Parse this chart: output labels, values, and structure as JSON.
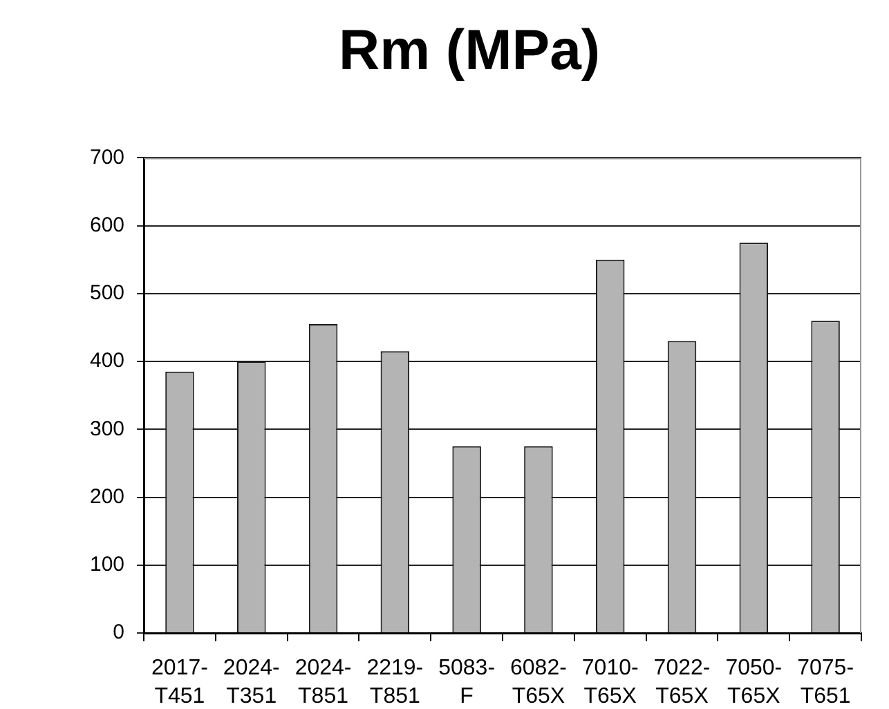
{
  "chart_data": {
    "type": "bar",
    "title": "Rm (MPa)",
    "categories": [
      "2017-T451",
      "2024-T351",
      "2024-T851",
      "2219-T851",
      "5083-F",
      "6082-T65X",
      "7010-T65X",
      "7022-T65X",
      "7050-T65X",
      "7075-T651"
    ],
    "values": [
      385,
      400,
      455,
      415,
      275,
      275,
      550,
      430,
      575,
      460
    ],
    "color": "#b4b4b4",
    "ylim": [
      0,
      700
    ],
    "yticks": [
      0,
      100,
      200,
      300,
      400,
      500,
      600,
      700
    ],
    "grid": "y",
    "legend": false
  }
}
